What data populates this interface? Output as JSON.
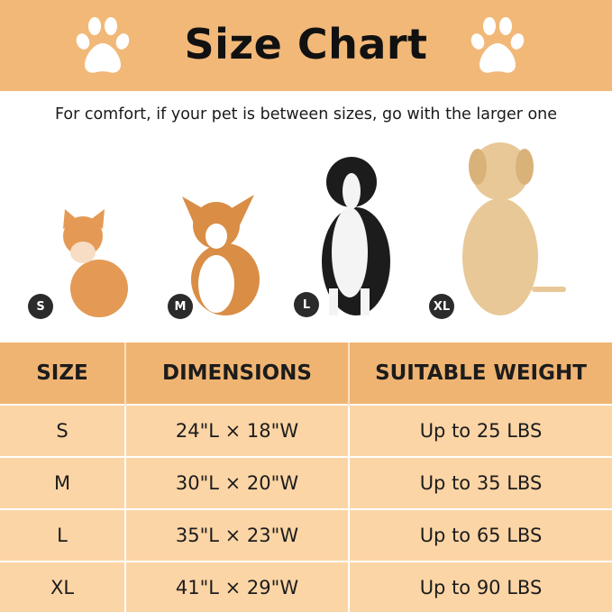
{
  "header": {
    "title": "Size Chart",
    "icon": "paw-print-icon"
  },
  "subtitle": "For comfort, if your pet is between sizes, go with the larger one",
  "pets": [
    {
      "badge": "S",
      "animal": "kitten"
    },
    {
      "badge": "M",
      "animal": "corgi"
    },
    {
      "badge": "L",
      "animal": "border collie"
    },
    {
      "badge": "XL",
      "animal": "labrador"
    }
  ],
  "table": {
    "headers": [
      "SIZE",
      "DIMENSIONS",
      "SUITABLE WEIGHT"
    ],
    "rows": [
      [
        "S",
        "24\"L × 18\"W",
        "Up to 25 LBS"
      ],
      [
        "M",
        "30\"L × 20\"W",
        "Up to 35 LBS"
      ],
      [
        "L",
        "35\"L × 23\"W",
        "Up to 65 LBS"
      ],
      [
        "XL",
        "41\"L × 29\"W",
        "Up to 90 LBS"
      ]
    ]
  },
  "colors": {
    "banner": "#f2b878",
    "table_header": "#f0b472",
    "table_row": "#fcd5a6",
    "badge": "#2b2b2b"
  }
}
